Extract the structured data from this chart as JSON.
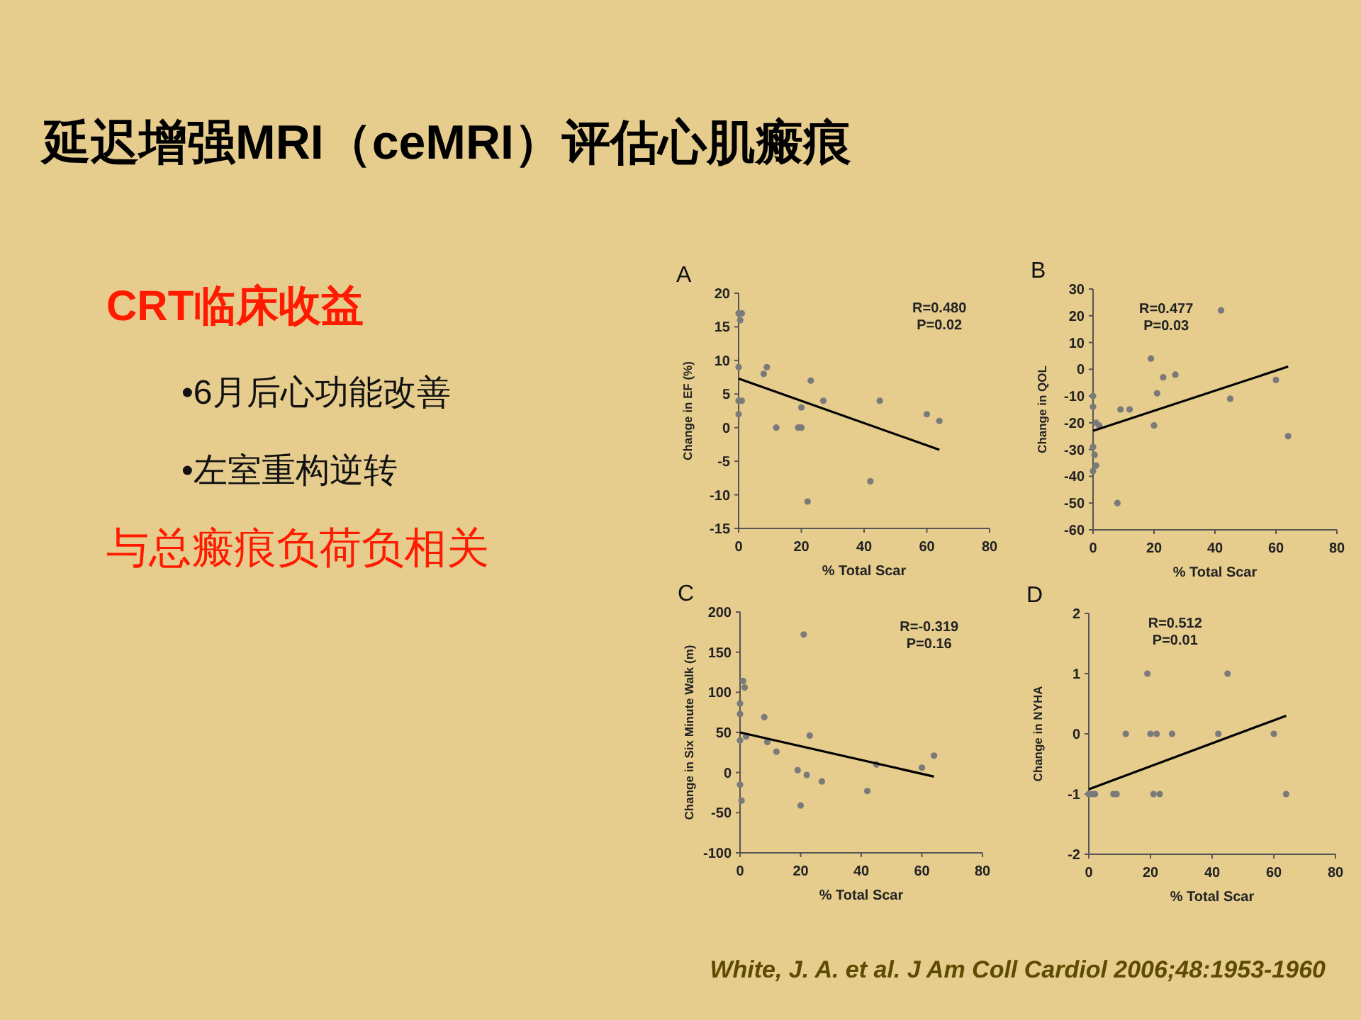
{
  "chart_data": [
    {
      "type": "other",
      "title": "延迟增强MRI（ceMRI）评估心肌瘢痕",
      "annotations": [
        "CRT临床收益",
        "•6月后心功能改善",
        "•左室重构逆转",
        "与总瘢痕负荷负相关",
        "White, J. A. et al. J Am Coll Cardiol 2006;48:1953-1960"
      ]
    },
    {
      "type": "scatter",
      "title": "A",
      "xlabel": "% Total Scar",
      "ylabel": "Change in EF (%)",
      "annotations": [
        "R=0.480",
        "P=0.02"
      ],
      "xlim": [
        0,
        80
      ],
      "xticks": [
        0,
        20,
        40,
        60,
        80
      ],
      "ylim": [
        -15,
        20
      ],
      "yticks": [
        -15,
        -10,
        -5,
        0,
        5,
        10,
        15,
        20
      ],
      "series": [
        {
          "type": "scatter",
          "marker": "circle",
          "color": "#7a7a7a",
          "x": [
            0,
            1,
            0.5,
            0,
            0,
            0,
            1,
            8,
            9,
            12,
            19,
            20,
            20,
            22,
            23,
            27,
            42,
            45,
            60,
            64
          ],
          "values": [
            17,
            17,
            16,
            9,
            4,
            2,
            4,
            8,
            9,
            0,
            0,
            0,
            3,
            -11,
            7,
            4,
            -8,
            4,
            2,
            1
          ]
        },
        {
          "type": "line",
          "color": "#000000",
          "x": [
            0,
            64
          ],
          "values": [
            7.3,
            -3.3
          ]
        }
      ]
    },
    {
      "type": "scatter",
      "title": "B",
      "xlabel": "% Total Scar",
      "ylabel": "Change in QOL",
      "annotations": [
        "R=0.477",
        "P=0.03"
      ],
      "xlim": [
        0,
        80
      ],
      "xticks": [
        0,
        20,
        40,
        60,
        80
      ],
      "ylim": [
        -60,
        30
      ],
      "yticks": [
        -60,
        -50,
        -40,
        -30,
        -20,
        -10,
        0,
        10,
        20,
        30
      ],
      "series": [
        {
          "type": "scatter",
          "marker": "circle",
          "color": "#7a7a7a",
          "x": [
            0,
            0,
            0,
            0.5,
            0,
            1,
            1,
            2,
            8,
            9,
            12,
            19,
            20,
            21,
            23,
            27,
            42,
            45,
            60,
            64
          ],
          "values": [
            -10,
            -14,
            -29,
            -32,
            -38,
            -36,
            -20,
            -21,
            -50,
            -15,
            -15,
            4,
            -21,
            -9,
            -3,
            -2,
            22,
            -11,
            -4,
            -25
          ]
        },
        {
          "type": "line",
          "color": "#000000",
          "x": [
            0,
            64
          ],
          "values": [
            -23,
            1
          ]
        }
      ]
    },
    {
      "type": "scatter",
      "title": "C",
      "xlabel": "% Total Scar",
      "ylabel": "Change in Six Minute Walk (m)",
      "annotations": [
        "R=-0.319",
        "P=0.16"
      ],
      "xlim": [
        0,
        80
      ],
      "xticks": [
        0,
        20,
        40,
        60,
        80
      ],
      "ylim": [
        -100,
        200
      ],
      "yticks": [
        -100,
        -50,
        0,
        50,
        100,
        150,
        200
      ],
      "series": [
        {
          "type": "scatter",
          "marker": "circle",
          "color": "#7a7a7a",
          "x": [
            0,
            0,
            0,
            0,
            0.5,
            1,
            1.5,
            2,
            8,
            9,
            12,
            19,
            20,
            21,
            22,
            23,
            27,
            42,
            45,
            60,
            64
          ],
          "values": [
            40,
            73,
            86,
            -15,
            -35,
            114,
            106,
            45,
            69,
            38,
            26,
            3,
            -41,
            172,
            -3,
            46,
            -11,
            -23,
            10,
            6,
            21
          ]
        },
        {
          "type": "line",
          "color": "#000000",
          "x": [
            0,
            64
          ],
          "values": [
            50,
            -5
          ]
        }
      ]
    },
    {
      "type": "scatter",
      "title": "D",
      "xlabel": "% Total Scar",
      "ylabel": "Change in NYHA",
      "annotations": [
        "R=0.512",
        "P=0.01"
      ],
      "xlim": [
        0,
        80
      ],
      "xticks": [
        0,
        20,
        40,
        60,
        80
      ],
      "ylim": [
        -2,
        2
      ],
      "yticks": [
        -2,
        -1,
        0,
        1,
        2
      ],
      "series": [
        {
          "type": "scatter",
          "marker": "circle",
          "color": "#7a7a7a",
          "x": [
            0,
            1,
            2,
            8,
            9,
            12,
            19,
            20,
            21,
            22,
            23,
            27,
            42,
            45,
            60,
            64
          ],
          "values": [
            -1,
            -1,
            -1,
            -1,
            -1,
            0,
            1,
            0,
            -1,
            0,
            -1,
            0,
            0,
            1,
            0,
            -1
          ]
        },
        {
          "type": "line",
          "color": "#000000",
          "x": [
            0,
            64
          ],
          "values": [
            -0.92,
            0.3
          ]
        }
      ]
    }
  ]
}
